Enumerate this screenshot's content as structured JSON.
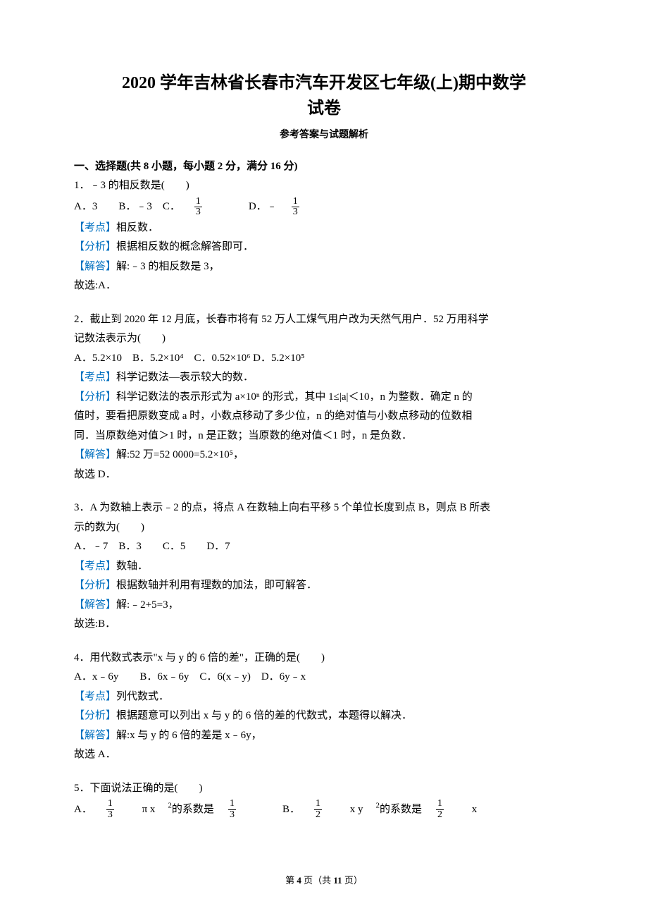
{
  "title_line1": "2020 学年吉林省长春市汽车开发区七年级(上)期中数学",
  "title_line2": "试卷",
  "subtitle": "参考答案与试题解析",
  "section_header": "一、选择题(共 8 小题，每小题 2 分，满分 16 分)",
  "q1": {
    "stem": "1．﹣3 的相反数是(　　)",
    "option_a_prefix": "A．3　　B．﹣3　C．",
    "option_d_prefix": "　　D．﹣",
    "kaodian_label": "【考点】",
    "kaodian": "相反数．",
    "fenxi_label": "【分析】",
    "fenxi": "根据相反数的概念解答即可．",
    "jieda_label": "【解答】",
    "jieda": "解:﹣3 的相反数是 3，",
    "conclusion": "故选:A．"
  },
  "q2": {
    "stem1": "2．截止到 2020 年 12 月底，长春市将有 52 万人工煤气用户改为天然气用户．52 万用科学",
    "stem2": "记数法表示为(　　)",
    "options": "A．5.2×10　B．5.2×10⁴　C．0.52×10⁶ D．5.2×10⁵",
    "kaodian_label": "【考点】",
    "kaodian": "科学记数法—表示较大的数．",
    "fenxi_label": "【分析】",
    "fenxi1": "科学记数法的表示形式为 a×10ⁿ 的形式，其中 1≤|a|＜10，n 为整数．确定 n 的",
    "fenxi2": "值时，要看把原数变成 a 时，小数点移动了多少位，n 的绝对值与小数点移动的位数相",
    "fenxi3": "同．当原数绝对值＞1 时，n 是正数；当原数的绝对值＜1 时，n 是负数．",
    "jieda_label": "【解答】",
    "jieda": "解:52 万=52 0000=5.2×10⁵，",
    "conclusion": "故选 D．"
  },
  "q3": {
    "stem1": "3．A 为数轴上表示﹣2 的点，将点 A 在数轴上向右平移 5 个单位长度到点 B，则点 B 所表",
    "stem2": "示的数为(　　)",
    "options": "A．﹣7　B．3　　C．5　　D．7",
    "kaodian_label": "【考点】",
    "kaodian": "数轴．",
    "fenxi_label": "【分析】",
    "fenxi": "根据数轴并利用有理数的加法，即可解答．",
    "jieda_label": "【解答】",
    "jieda": "解:﹣2+5=3，",
    "conclusion": "故选:B．"
  },
  "q4": {
    "stem": "4．用代数式表示\"x 与 y 的 6 倍的差\"，正确的是(　　)",
    "options": "A．x﹣6y　　B．6x﹣6y　C．6(x﹣y)　D．6y﹣x",
    "kaodian_label": "【考点】",
    "kaodian": "列代数式．",
    "fenxi_label": "【分析】",
    "fenxi": "根据题意可以列出 x 与 y 的 6 倍的差的代数式，本题得以解决．",
    "jieda_label": "【解答】",
    "jieda": "解:x 与 y 的 6 倍的差是 x﹣6y，",
    "conclusion": "故选 A．"
  },
  "q5": {
    "stem": "5．下面说法正确的是(　　)",
    "opt_a_prefix": "A．",
    "opt_a_mid": " π x",
    "opt_a_suffix": "的系数是",
    "opt_b_prefix": "　　B．",
    "opt_b_mid": " x y",
    "opt_b_suffix": "的系数是",
    "opt_b_end": " x"
  },
  "footer": {
    "prefix": "第 ",
    "page": "4",
    "mid": " 页（共 ",
    "total": "11",
    "suffix": " 页）"
  },
  "fractions": {
    "one_third_num": "1",
    "one_third_den": "3",
    "one_half_num": "1",
    "one_half_den": "2"
  }
}
